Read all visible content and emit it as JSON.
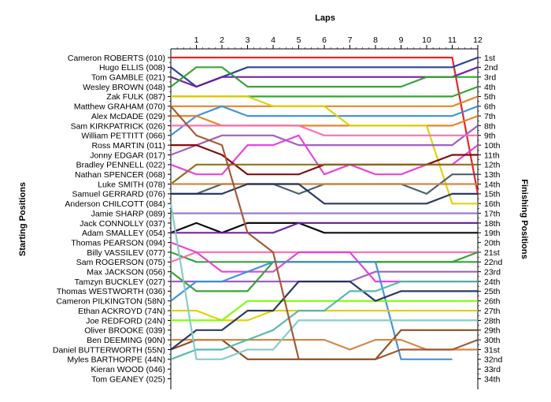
{
  "chart_data": {
    "type": "line",
    "title": "",
    "xlabel": "Laps",
    "ylabel_left": "Starting Positions",
    "ylabel_right": "Finishing Positions",
    "x": [
      0,
      1,
      2,
      3,
      4,
      5,
      6,
      7,
      8,
      9,
      10,
      11,
      12
    ],
    "x_tick_labels": [
      "1",
      "2",
      "3",
      "4",
      "5",
      "6",
      "7",
      "8",
      "9",
      "10",
      "11",
      "12"
    ],
    "ylim": [
      1,
      34
    ],
    "y_inverted": true,
    "grid": false,
    "drivers": [
      "Cameron ROBERTS (010)",
      "Hugo ELLIS (008)",
      "Tom GAMBLE (021)",
      "Wesley BROWN (048)",
      "Zak FULK (087)",
      "Matthew GRAHAM (070)",
      "Alex McDADE (029)",
      "Sam KIRKPATRICK (026)",
      "William PETTITT (066)",
      "Ross MARTIN (011)",
      "Jonny EDGAR (017)",
      "Bradley PENNELL (022)",
      "Nathan SPENCER (068)",
      "Luke SMITH (078)",
      "Samuel GERRARD (076)",
      "Anderson CHILCOTT (084)",
      "Jamie SHARP (089)",
      "Jack CONNOLLY (037)",
      "Adam SMALLEY (054)",
      "Thomas PEARSON (094)",
      "Billy VASSILEV (077)",
      "Sam ROGERSON (075)",
      "Max JACKSON (056)",
      "Tamzyn BUCKLEY (027)",
      "Thomas WESTWORTH (036)",
      "Cameron PILKINGTON (58N)",
      "Ethan ACKROYD (74N)",
      "Joe REDFORD (24N)",
      "Oliver BROOKE (039)",
      "Ben DEEMING (90N)",
      "Daniel BUTTERWORTH (55N)",
      "Myles BARTHORPE (44N)",
      "Kieran WOOD (046)",
      "Tom GEANEY (025)"
    ],
    "finishing_labels": [
      "1st",
      "2nd",
      "3rd",
      "4th",
      "5th",
      "6th",
      "7th",
      "8th",
      "9th",
      "10th",
      "11th",
      "12th",
      "13th",
      "14th",
      "15th",
      "16th",
      "17th",
      "18th",
      "19th",
      "20th",
      "21st",
      "22nd",
      "23rd",
      "24th",
      "25th",
      "26th",
      "27th",
      "28th",
      "29th",
      "30th",
      "31st",
      "32nd",
      "33rd",
      "34th"
    ],
    "series": [
      {
        "color": "#e41a1c",
        "positions": [
          1,
          1,
          1,
          1,
          1,
          1,
          1,
          1,
          1,
          1,
          1,
          1,
          15
        ]
      },
      {
        "color": "#1f3c99",
        "positions": [
          2,
          4,
          3,
          2,
          2,
          2,
          2,
          2,
          2,
          2,
          2,
          2,
          1
        ]
      },
      {
        "color": "#6a1b9a",
        "positions": [
          3,
          4,
          3,
          3,
          3,
          3,
          3,
          3,
          3,
          3,
          3,
          3,
          2
        ]
      },
      {
        "color": "#2ca02c",
        "positions": [
          4,
          2,
          2,
          4,
          4,
          4,
          4,
          4,
          4,
          4,
          3,
          3,
          3
        ]
      },
      {
        "color": "#2ca02c",
        "positions": [
          5,
          5,
          5,
          5,
          5,
          5,
          5,
          5,
          5,
          5,
          5,
          5,
          4
        ]
      },
      {
        "color": "#e67e22",
        "positions": [
          6,
          6,
          6,
          6,
          6,
          6,
          6,
          6,
          6,
          6,
          6,
          6,
          5
        ]
      },
      {
        "color": "#3b8fd9",
        "positions": [
          9,
          7,
          6,
          7,
          7,
          7,
          7,
          7,
          7,
          7,
          7,
          7,
          6
        ]
      },
      {
        "color": "#e67e22",
        "positions": [
          7,
          7,
          8,
          8,
          8,
          8,
          8,
          8,
          8,
          8,
          8,
          8,
          7
        ]
      },
      {
        "color": "#e0d000",
        "positions": [
          5,
          5,
          5,
          5,
          6,
          6,
          6,
          8,
          8,
          8,
          8,
          16,
          16
        ]
      },
      {
        "color": "#9b59b6",
        "positions": [
          11,
          10,
          9,
          9,
          9,
          10,
          10,
          10,
          10,
          10,
          10,
          10,
          8
        ]
      },
      {
        "color": "#ff69b4",
        "positions": [
          8,
          8,
          8,
          8,
          8,
          8,
          9,
          9,
          9,
          9,
          9,
          9,
          9
        ]
      },
      {
        "color": "#e73bd8",
        "positions": [
          12,
          13,
          13,
          10,
          10,
          9,
          13,
          12,
          13,
          13,
          12,
          12,
          10
        ]
      },
      {
        "color": "#7f0000",
        "positions": [
          10,
          10,
          11,
          13,
          13,
          13,
          12,
          12,
          12,
          12,
          12,
          11,
          11
        ]
      },
      {
        "color": "#8b6914",
        "positions": [
          14,
          12,
          12,
          12,
          12,
          12,
          12,
          12,
          12,
          12,
          12,
          12,
          12
        ]
      },
      {
        "color": "#455a64",
        "positions": [
          15,
          15,
          14,
          14,
          14,
          15,
          14,
          14,
          14,
          14,
          15,
          13,
          13
        ]
      },
      {
        "color": "#cd853f",
        "positions": [
          14,
          14,
          14,
          14,
          14,
          14,
          14,
          14,
          14,
          14,
          14,
          14,
          14
        ]
      },
      {
        "color": "#20305a",
        "positions": [
          15,
          15,
          15,
          14,
          14,
          14,
          16,
          16,
          16,
          16,
          16,
          15,
          15
        ]
      },
      {
        "color": "#9575cd",
        "positions": [
          17,
          17,
          17,
          17,
          17,
          17,
          17,
          17,
          17,
          17,
          17,
          17,
          17
        ]
      },
      {
        "color": "#000000",
        "positions": [
          19,
          18,
          19,
          18,
          18,
          18,
          19,
          19,
          19,
          19,
          19,
          19,
          19
        ]
      },
      {
        "color": "#6a1b9a",
        "positions": [
          19,
          19,
          19,
          19,
          19,
          18,
          18,
          18,
          18,
          18,
          18,
          18,
          18
        ]
      },
      {
        "color": "#2ca02c",
        "positions": [
          21,
          22,
          22,
          22,
          22,
          22,
          22,
          22,
          22,
          22,
          22,
          22,
          22
        ]
      },
      {
        "color": "#ff69b4",
        "positions": [
          22,
          21,
          21,
          21,
          21,
          21,
          21,
          21,
          21,
          21,
          21,
          21,
          21
        ]
      },
      {
        "color": "#9b59b6",
        "positions": [
          24,
          24,
          24,
          24,
          24,
          24,
          24,
          24,
          23,
          23,
          23,
          23,
          23
        ]
      },
      {
        "color": "#e73bd8",
        "positions": [
          20,
          21,
          23,
          23,
          23,
          21,
          21,
          21,
          24,
          24,
          24,
          24,
          24
        ]
      },
      {
        "color": "#2ca02c",
        "positions": [
          23,
          25,
          25,
          25,
          22,
          22,
          22,
          22,
          22,
          22,
          22,
          22,
          21
        ]
      },
      {
        "color": "#3b8fd9",
        "positions": [
          26,
          24,
          24,
          23,
          22,
          22,
          22,
          22,
          22,
          32,
          32,
          32,
          null
        ]
      },
      {
        "color": "#e0d000",
        "positions": [
          27,
          27,
          28,
          28,
          27,
          27,
          27,
          27,
          27,
          27,
          27,
          27,
          27
        ]
      },
      {
        "color": "#7cfc00",
        "positions": [
          28,
          28,
          28,
          26,
          26,
          26,
          26,
          26,
          26,
          26,
          26,
          26,
          26
        ]
      },
      {
        "color": "#8b4513",
        "positions": [
          31,
          30,
          30,
          32,
          32,
          32,
          32,
          32,
          32,
          29,
          29,
          29,
          29
        ]
      },
      {
        "color": "#cd853f",
        "positions": [
          30,
          30,
          30,
          30,
          30,
          30,
          30,
          31,
          30,
          30,
          31,
          31,
          31
        ]
      },
      {
        "color": "#20305a",
        "positions": [
          31,
          29,
          29,
          27,
          27,
          24,
          24,
          24,
          26,
          25,
          25,
          25,
          25
        ]
      },
      {
        "color": "#4db6ac",
        "positions": [
          32,
          31,
          31,
          30,
          29,
          27,
          27,
          25,
          25,
          24,
          24,
          24,
          24
        ]
      },
      {
        "color": "#80cbc4",
        "positions": [
          16,
          32,
          32,
          31,
          31,
          28,
          28,
          28,
          28,
          28,
          28,
          28,
          28
        ]
      },
      {
        "color": "#a0522d",
        "positions": [
          6,
          9,
          10,
          19,
          21,
          32,
          32,
          32,
          32,
          31,
          31,
          31,
          30
        ]
      }
    ]
  }
}
